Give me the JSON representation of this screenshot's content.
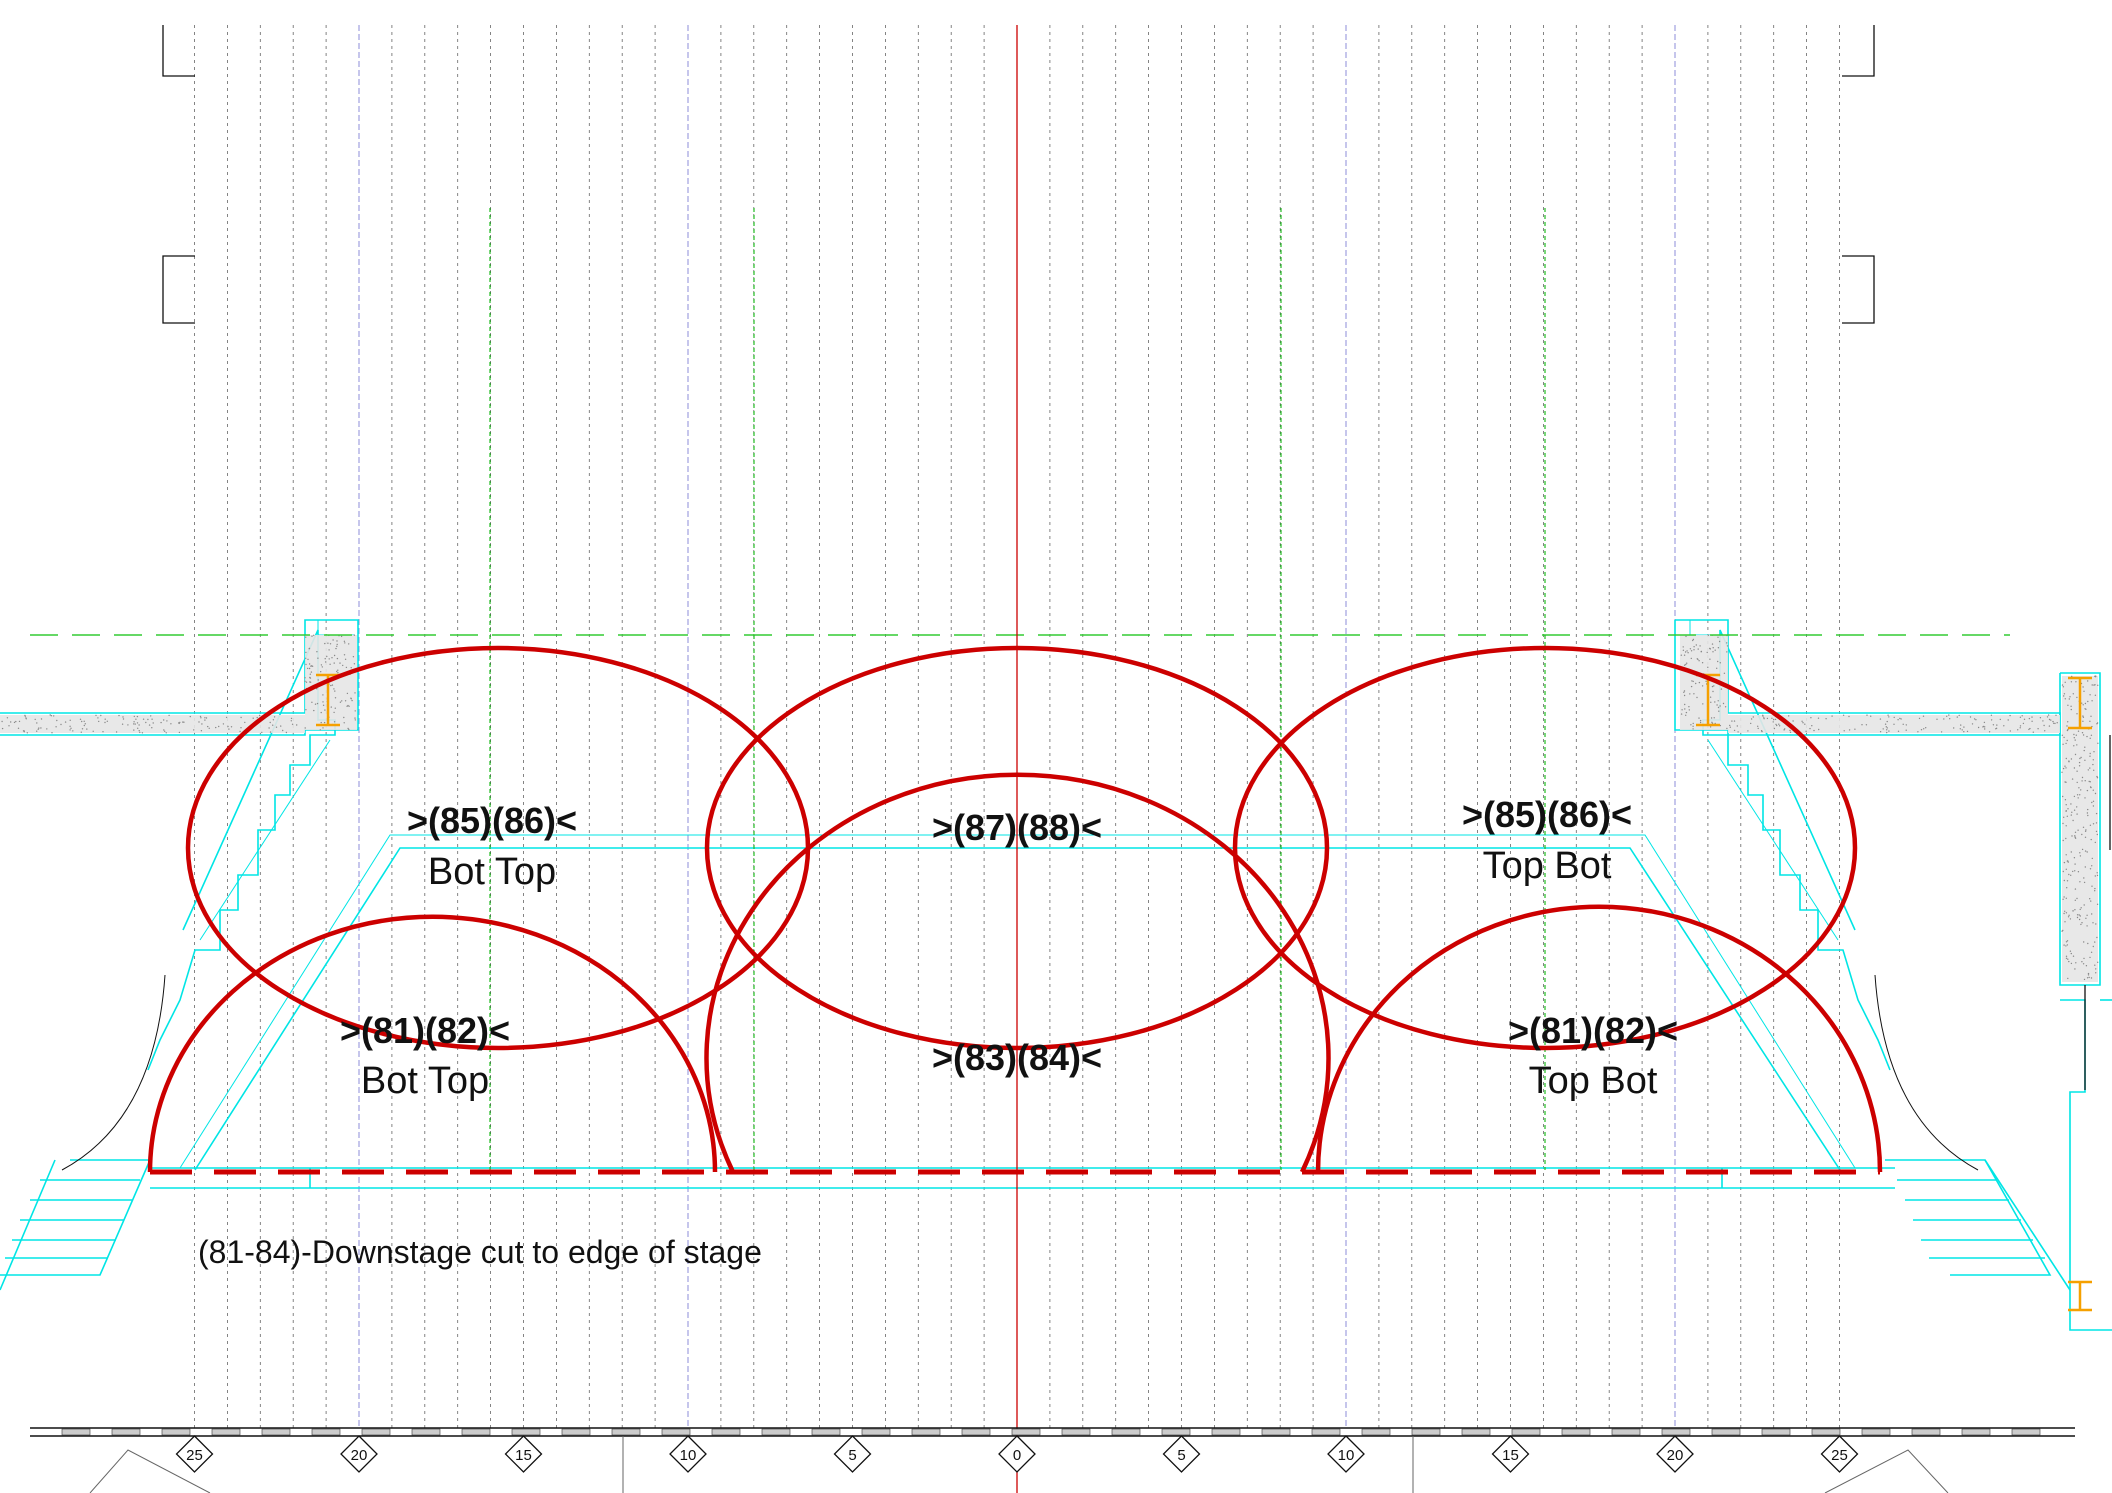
{
  "colors": {
    "red": "#cc0000",
    "cyan": "#00e5e5",
    "green": "#22bb22",
    "grid": "#333333",
    "blue": "#6666cc",
    "orange": "#f5a000"
  },
  "groups": [
    {
      "id": "upper-left",
      "label": "(85)(86)",
      "sub": "Bot Top"
    },
    {
      "id": "upper-center",
      "label": "(87)(88)",
      "sub": ""
    },
    {
      "id": "upper-right",
      "label": "(85)(86)",
      "sub": "Top Bot"
    },
    {
      "id": "lower-left",
      "label": "(81)(82)",
      "sub": "Bot Top"
    },
    {
      "id": "lower-center",
      "label": "(83)(84)",
      "sub": ""
    },
    {
      "id": "lower-right",
      "label": "(81)(82)",
      "sub": "Top Bot"
    }
  ],
  "note": "(81-84)-Downstage cut to edge of stage",
  "scale_ticks": [
    "25",
    "20",
    "15",
    "10",
    "5",
    "0",
    "5",
    "10",
    "15",
    "20",
    "25"
  ]
}
